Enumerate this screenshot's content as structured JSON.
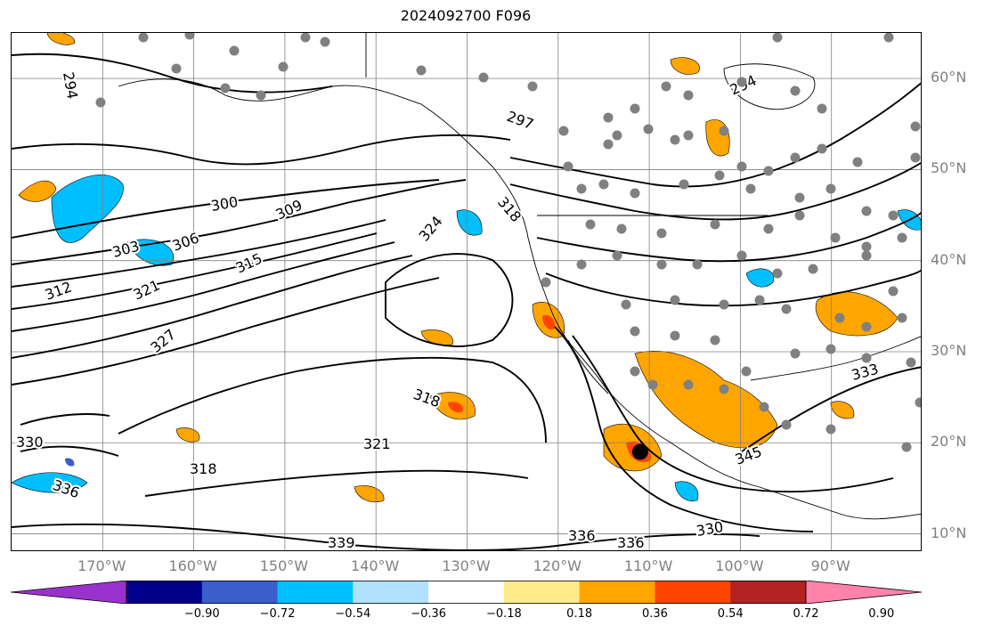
{
  "title": "2024092700 F096",
  "lat_labels": [
    "60°N",
    "50°N",
    "40°N",
    "30°N",
    "20°N",
    "10°N"
  ],
  "lon_labels": [
    "170°W",
    "160°W",
    "150°W",
    "140°W",
    "130°W",
    "120°W",
    "110°W",
    "100°W",
    "90°W"
  ],
  "contour_labels": [
    "294",
    "297",
    "300",
    "303",
    "306",
    "309",
    "312",
    "315",
    "318",
    "321",
    "324",
    "327",
    "330",
    "333",
    "336",
    "339",
    "345"
  ],
  "colorbar": {
    "ticks": [
      "−0.90",
      "−0.72",
      "−0.54",
      "−0.36",
      "−0.18",
      "0.18",
      "0.36",
      "0.54",
      "0.72",
      "0.90"
    ],
    "colors": [
      "#9932cc",
      "#00008b",
      "#3a5fcd",
      "#00bfff",
      "#b0e2ff",
      "#ffffff",
      "#ffec8b",
      "#ffa500",
      "#ff4500",
      "#b22222",
      "#ff82ab"
    ]
  },
  "colors": {
    "positive_low": "#ffa500",
    "positive_high": "#ff4500",
    "negative_low": "#00bfff",
    "negative_high": "#3a5fcd",
    "station": "#808080",
    "grid": "#808080",
    "label": "#808080"
  },
  "map": {
    "extent_lon": [
      -180,
      -80
    ],
    "extent_lat": [
      8,
      65
    ],
    "storm_marker": {
      "lon": -111,
      "lat": 19
    }
  }
}
